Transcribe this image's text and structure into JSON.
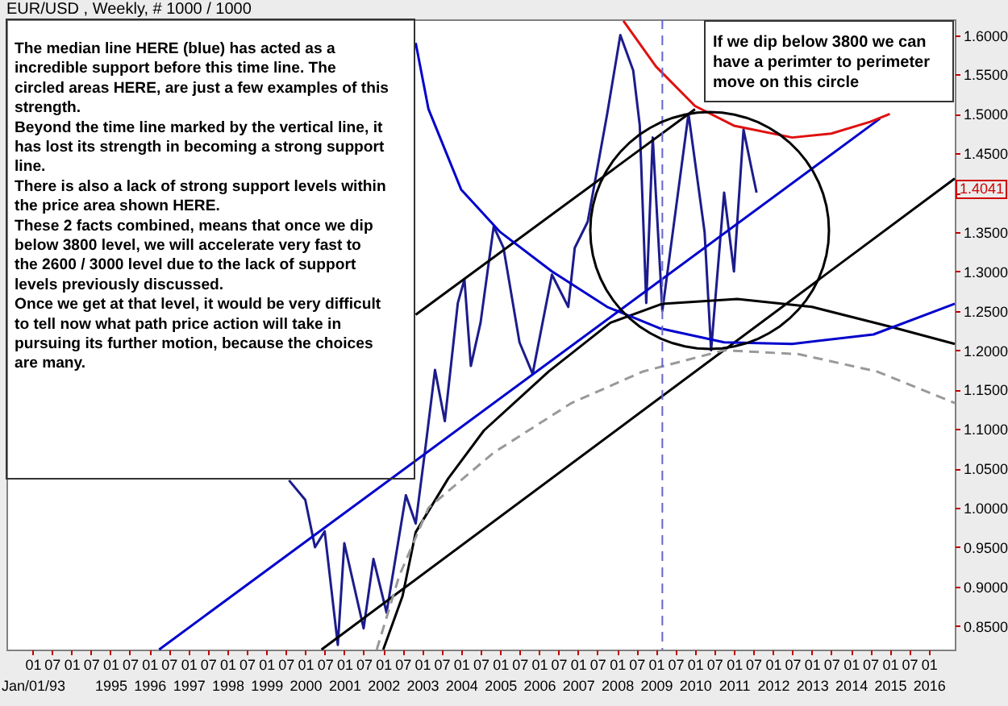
{
  "chart_data": {
    "type": "line",
    "title": "EUR/USD , Weekly, # 1000 / 1000",
    "xlim": [
      "1992-05",
      "2016-09"
    ],
    "ylim": [
      0.82,
      1.62
    ],
    "xticks": [
      {
        "value": "1993-01",
        "label": "01\nJan/01/93"
      },
      {
        "value": "1993-07",
        "label": "07"
      },
      {
        "value": "1994-01",
        "label": "01"
      },
      {
        "value": "1994-07",
        "label": "07"
      },
      {
        "value": "1995-01",
        "label": "01\n1995"
      },
      {
        "value": "1995-07",
        "label": "07"
      },
      {
        "value": "1996-01",
        "label": "01\n1996"
      },
      {
        "value": "1996-07",
        "label": "07"
      },
      {
        "value": "1997-01",
        "label": "01\n1997"
      },
      {
        "value": "1997-07",
        "label": "07"
      },
      {
        "value": "1998-01",
        "label": "01\n1998"
      },
      {
        "value": "1998-07",
        "label": "07"
      },
      {
        "value": "1999-01",
        "label": "01\n1999"
      },
      {
        "value": "1999-07",
        "label": "07"
      },
      {
        "value": "2000-01",
        "label": "01\n2000"
      },
      {
        "value": "2000-07",
        "label": "07"
      },
      {
        "value": "2001-01",
        "label": "01\n2001"
      },
      {
        "value": "2001-07",
        "label": "07"
      },
      {
        "value": "2002-01",
        "label": "01\n2002"
      },
      {
        "value": "2002-07",
        "label": "07"
      },
      {
        "value": "2003-01",
        "label": "01\n2003"
      },
      {
        "value": "2003-07",
        "label": "07"
      },
      {
        "value": "2004-01",
        "label": "01\n2004"
      },
      {
        "value": "2004-07",
        "label": "07"
      },
      {
        "value": "2005-01",
        "label": "01\n2005"
      },
      {
        "value": "2005-07",
        "label": "07"
      },
      {
        "value": "2006-01",
        "label": "01\n2006"
      },
      {
        "value": "2006-07",
        "label": "07"
      },
      {
        "value": "2007-01",
        "label": "01\n2007"
      },
      {
        "value": "2007-07",
        "label": "07"
      },
      {
        "value": "2008-01",
        "label": "01\n2008"
      },
      {
        "value": "2008-07",
        "label": "07"
      },
      {
        "value": "2009-01",
        "label": "01\n2009"
      },
      {
        "value": "2009-07",
        "label": "07"
      },
      {
        "value": "2010-01",
        "label": "01\n2010"
      },
      {
        "value": "2010-07",
        "label": "07"
      },
      {
        "value": "2011-01",
        "label": "01\n2011"
      },
      {
        "value": "2011-07",
        "label": "07"
      },
      {
        "value": "2012-01",
        "label": "01\n2012"
      },
      {
        "value": "2012-07",
        "label": "07"
      },
      {
        "value": "2013-01",
        "label": "01\n2013"
      },
      {
        "value": "2013-07",
        "label": "07"
      },
      {
        "value": "2014-01",
        "label": "01\n2014"
      },
      {
        "value": "2014-07",
        "label": "07"
      },
      {
        "value": "2015-01",
        "label": "01\n2015"
      },
      {
        "value": "2015-07",
        "label": "07"
      },
      {
        "value": "2016-01",
        "label": "01\n2016"
      }
    ],
    "yticks": [
      {
        "value": 0.85,
        "label": "0.8500"
      },
      {
        "value": 0.9,
        "label": "0.9000"
      },
      {
        "value": 0.95,
        "label": "0.9500"
      },
      {
        "value": 1.0,
        "label": "1.0000"
      },
      {
        "value": 1.05,
        "label": "1.0500"
      },
      {
        "value": 1.1,
        "label": "1.1000"
      },
      {
        "value": 1.15,
        "label": "1.1500"
      },
      {
        "value": 1.2,
        "label": "1.2000"
      },
      {
        "value": 1.25,
        "label": "1.2500"
      },
      {
        "value": 1.3,
        "label": "1.3000"
      },
      {
        "value": 1.35,
        "label": "1.3500"
      },
      {
        "value": 1.4,
        "label": null
      },
      {
        "value": 1.45,
        "label": "1.4500"
      },
      {
        "value": 1.5,
        "label": "1.5000"
      },
      {
        "value": 1.55,
        "label": "1.5500"
      },
      {
        "value": 1.6,
        "label": "1.6000"
      }
    ],
    "grid": false,
    "series": [
      {
        "color": "#1c1c8c",
        "x": [
          "1999-08",
          "2000-01",
          "2000-04",
          "2000-07",
          "2000-11",
          "2001-01",
          "2001-07",
          "2001-10",
          "2002-02",
          "2002-08",
          "2002-11",
          "2003-02",
          "2003-05",
          "2003-08",
          "2003-12",
          "2004-02",
          "2004-04",
          "2004-07",
          "2004-11",
          "2005-02",
          "2005-07",
          "2005-11",
          "2006-05",
          "2006-10",
          "2006-12",
          "2007-04",
          "2007-10",
          "2008-02",
          "2008-06",
          "2008-08",
          "2008-10",
          "2008-12",
          "2009-03",
          "2009-11",
          "2010-04",
          "2010-06",
          "2010-10",
          "2011-01",
          "2011-04",
          "2011-07",
          "2011-08"
        ],
        "values": [
          1.035,
          1.01,
          0.95,
          0.97,
          0.826,
          0.955,
          0.847,
          0.935,
          0.867,
          1.016,
          0.98,
          1.077,
          1.175,
          1.11,
          1.26,
          1.29,
          1.18,
          1.235,
          1.357,
          1.33,
          1.21,
          1.17,
          1.296,
          1.255,
          1.33,
          1.363,
          1.5,
          1.6,
          1.555,
          1.486,
          1.26,
          1.47,
          1.25,
          1.5,
          1.35,
          1.2,
          1.4,
          1.3,
          1.48,
          1.42,
          1.4
        ]
      },
      {
        "color": "#0000cc",
        "x": [
          "1996-04",
          "2014-10"
        ],
        "values": [
          0.82,
          1.494
        ]
      },
      {
        "color": "#000000",
        "x": [
          "2002-11",
          "2010-01"
        ],
        "values": [
          1.245,
          1.506
        ]
      },
      {
        "color": "#000000",
        "x": [
          "2000-06",
          "2016-09"
        ],
        "values": [
          0.82,
          1.418
        ]
      },
      {
        "color": "#000000",
        "x": [
          "2002-01",
          "2002-07",
          "2002-11",
          "2003-09",
          "2004-08",
          "2006-04",
          "2007-11",
          "2009-03",
          "2011-02",
          "2013-01",
          "2015-02",
          "2016-09"
        ],
        "values": [
          0.82,
          0.888,
          0.969,
          1.037,
          1.098,
          1.173,
          1.235,
          1.259,
          1.265,
          1.255,
          1.229,
          1.208
        ]
      },
      {
        "color": "#0000cc",
        "x": [
          "2002-11",
          "2003-03",
          "2004-01",
          "2005-01",
          "2006-05",
          "2007-10",
          "2009-02",
          "2010-10",
          "2012-07",
          "2014-08",
          "2016-09"
        ],
        "values": [
          1.59,
          1.506,
          1.404,
          1.35,
          1.3,
          1.255,
          1.228,
          1.21,
          1.208,
          1.22,
          1.259
        ]
      },
      {
        "color": "#999999",
        "line_style": "dashed",
        "x": [
          "2001-11",
          "2002-06",
          "2003-03",
          "2004-11",
          "2006-11",
          "2008-09",
          "2010-10",
          "2012-09",
          "2014-09",
          "2016-09"
        ],
        "values": [
          0.82,
          0.914,
          1.0,
          1.07,
          1.133,
          1.173,
          1.2,
          1.195,
          1.173,
          1.133
        ]
      },
      {
        "color": "#e01010",
        "x": [
          "2008-03",
          "2009-01",
          "2010-01",
          "2011-01",
          "2012-07",
          "2013-07",
          "2014-07",
          "2015-01"
        ],
        "values": [
          1.618,
          1.56,
          1.51,
          1.485,
          1.47,
          1.475,
          1.49,
          1.5
        ]
      }
    ],
    "ref_lines": [
      {
        "axis": "x",
        "value": "2009-03",
        "color": "#6666cc",
        "line_style": "dashed"
      }
    ],
    "annotations": [
      "The median line HERE (blue) has acted as a\nincredible support before this time line.  The\ncircled areas HERE, are just a few examples of this\nstrength.\n\nBeyond the time line marked by the vertical line, it\nhas lost its strength in becoming a strong support\nline.\n\nThere is also a lack of strong support levels within\nthe price area shown HERE.\n\nThese 2 facts combined, means that once we dip\nbelow 3800 level, we will accelerate very fast to\nthe 2600 / 3000 level due to the lack of support\nlevels previously discussed.\n\nOnce we get at that level, it would be very difficult\nto tell now what path price action will take in\npursuing its further motion, because the choices\nare many.",
      "If we dip below 3800 we can\nhave a perimter to perimeter\nmove on this circle",
      "1.4041"
    ]
  }
}
